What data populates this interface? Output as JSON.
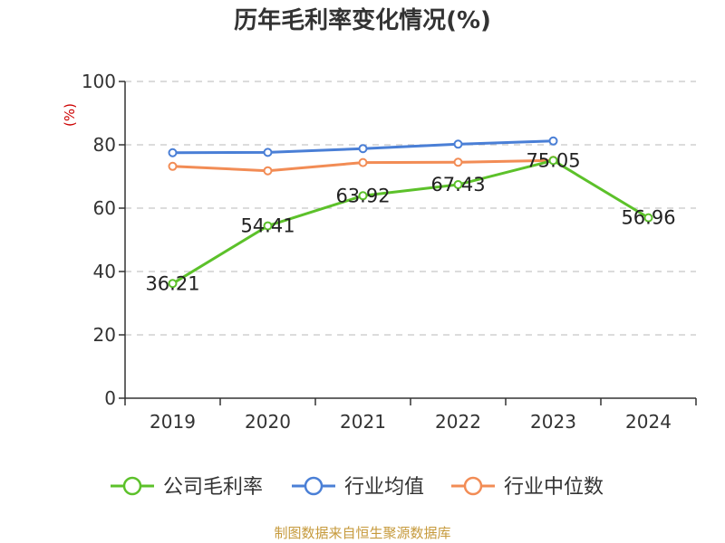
{
  "colors": {
    "company": "#5cc12a",
    "industry_avg": "#4a7fd6",
    "industry_median": "#f28c55",
    "axis": "#333333",
    "grid": "#c8c8c8",
    "ylabel": "#cc0000",
    "source": "#c69a3c"
  },
  "chart_data": {
    "type": "line",
    "title": "历年毛利率变化情况(%)",
    "ylabel": "(%)",
    "xlabel": "",
    "categories": [
      "2019",
      "2020",
      "2021",
      "2022",
      "2023",
      "2024"
    ],
    "ylim": [
      0,
      100
    ],
    "yticks": [
      0,
      20,
      40,
      60,
      80,
      100
    ],
    "grid": true,
    "legend_position": "bottom",
    "series": [
      {
        "key": "company",
        "name": "公司毛利率",
        "values": [
          36.21,
          54.41,
          63.92,
          67.43,
          75.05,
          56.96
        ],
        "labels": [
          "36.21",
          "54.41",
          "63.92",
          "67.43",
          "75.05",
          "56.96"
        ]
      },
      {
        "key": "industry_avg",
        "name": "行业均值",
        "values": [
          77.5,
          77.6,
          78.8,
          80.2,
          81.2,
          null
        ]
      },
      {
        "key": "industry_median",
        "name": "行业中位数",
        "values": [
          73.2,
          71.8,
          74.4,
          74.5,
          75.1,
          null
        ]
      }
    ]
  },
  "source": "制图数据来自恒生聚源数据库"
}
